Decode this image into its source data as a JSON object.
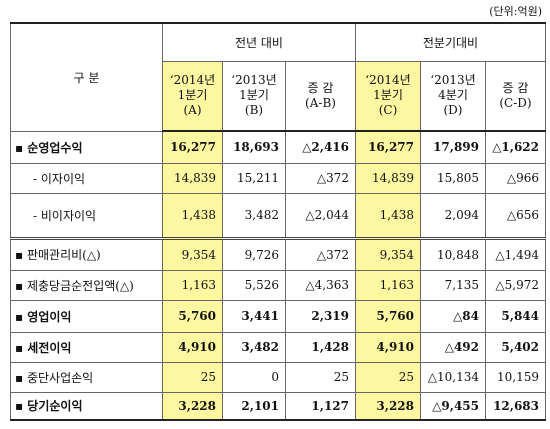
{
  "unit": "(단위:억원)",
  "header": {
    "label": "구    분",
    "groups": [
      "전년 대비",
      "전분기대비"
    ],
    "columns": [
      [
        "‘2014년",
        "1분기",
        "(A)"
      ],
      [
        "‘2013년",
        "1분기",
        "(B)"
      ],
      [
        "증  감",
        "(A-B)"
      ],
      [
        "‘2014년",
        "1분기",
        "(C)"
      ],
      [
        "‘2013년",
        "4분기",
        "(D)"
      ],
      [
        "증  감",
        "(C-D)"
      ]
    ]
  },
  "table": {
    "rows": [
      {
        "label": "▪ 순영업수익",
        "bold": true,
        "cells": [
          "16,277",
          "18,693",
          "△2,416",
          "16,277",
          "17,899",
          "△1,622"
        ]
      },
      {
        "label": "- 이자이익",
        "indent": true,
        "cells": [
          "14,839",
          "15,211",
          "△372",
          "14,839",
          "15,805",
          "△966"
        ]
      },
      {
        "label": "- 비이자이익",
        "indent": true,
        "cells": [
          "1,438",
          "3,482",
          "△2,044",
          "1,438",
          "2,094",
          "△656"
        ]
      },
      {
        "label": "▪ 판매관리비(△)",
        "cells": [
          "9,354",
          "9,726",
          "△372",
          "9,354",
          "10,848",
          "△1,494"
        ]
      },
      {
        "label": "▪ 제충당금순전입액(△)",
        "cells": [
          "1,163",
          "5,526",
          "△4,363",
          "1,163",
          "7,135",
          "△5,972"
        ]
      },
      {
        "label": "▪ 영업이익",
        "bold": true,
        "cells": [
          "5,760",
          "3,441",
          "2,319",
          "5,760",
          "△84",
          "5,844"
        ]
      },
      {
        "label": "▪ 세전이익",
        "bold": true,
        "cells": [
          "4,910",
          "3,482",
          "1,428",
          "4,910",
          "△492",
          "5,402"
        ]
      },
      {
        "label": "▪ 중단사업손익",
        "cells": [
          "25",
          "0",
          "25",
          "25",
          "△10,134",
          "10,159"
        ]
      },
      {
        "label": "▪ 당기순이익",
        "bold": true,
        "cells": [
          "3,228",
          "2,101",
          "1,127",
          "3,228",
          "△9,455",
          "12,683"
        ]
      }
    ]
  }
}
